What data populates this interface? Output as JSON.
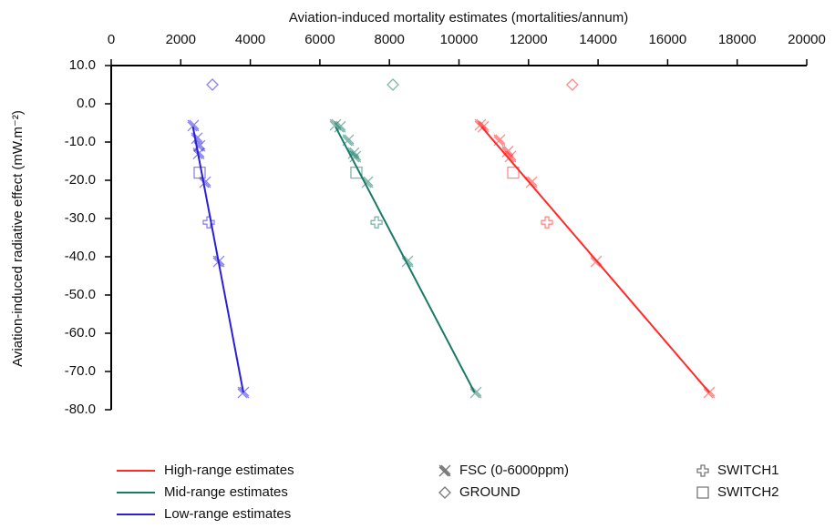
{
  "chart_data": {
    "type": "scatter-line",
    "x_label": "Aviation-induced mortality estimates (mortalities/annum)",
    "y_label": "Aviation-induced radiative effect (mW.m⁻²)",
    "xlim": [
      0,
      20000
    ],
    "xticks": [
      0,
      2000,
      4000,
      6000,
      8000,
      10000,
      12000,
      14000,
      16000,
      18000,
      20000
    ],
    "ylim": [
      -80,
      10
    ],
    "yticks": [
      {
        "value": 10,
        "label": "10.0"
      },
      {
        "value": 0,
        "label": "0.0"
      },
      {
        "value": -10,
        "label": "-10.0"
      },
      {
        "value": -20,
        "label": "-20.0"
      },
      {
        "value": -30,
        "label": "-30.0"
      },
      {
        "value": -40,
        "label": "-40.0"
      },
      {
        "value": -50,
        "label": "-50.0"
      },
      {
        "value": -60,
        "label": "-60.0"
      },
      {
        "value": -70,
        "label": "-70.0"
      },
      {
        "value": -80,
        "label": "-80.0"
      }
    ],
    "markers": [
      {
        "name": "FSC (0-6000ppm)",
        "shape": "x"
      },
      {
        "name": "GROUND",
        "shape": "diamond"
      },
      {
        "name": "SWITCH1",
        "shape": "plus"
      },
      {
        "name": "SWITCH2",
        "shape": "square"
      }
    ],
    "series": [
      {
        "name": "High-range estimates",
        "color": "#ff2a2a",
        "x": [
          10650,
          17200
        ],
        "y": [
          -6,
          -75.5
        ],
        "groups": [
          {
            "x": [
              10615,
              10700,
              11165,
              11400,
              11480,
              12085,
              13945,
              17195
            ],
            "y": [
              -5.5,
              -6,
              -9.5,
              -12.5,
              -13.8,
              -20.5,
              -41.2,
              -75.5
            ]
          },
          {
            "x": [
              13260
            ],
            "y": [
              5
            ]
          },
          {
            "x": [
              12530
            ],
            "y": [
              -31
            ]
          },
          {
            "x": [
              11560
            ],
            "y": [
              -18
            ]
          }
        ]
      },
      {
        "name": "Mid-range estimates",
        "color": "#1a7a66",
        "x": [
          6450,
          10450
        ],
        "y": [
          -6,
          -75.5
        ],
        "groups": [
          {
            "x": [
              6450,
              6580,
              6815,
              6970,
              7020,
              7365,
              8520,
              10485
            ],
            "y": [
              -5.5,
              -6,
              -9.5,
              -12.9,
              -13.8,
              -20.5,
              -41.2,
              -75.5
            ]
          },
          {
            "x": [
              8100
            ],
            "y": [
              5
            ]
          },
          {
            "x": [
              7630
            ],
            "y": [
              -31
            ]
          },
          {
            "x": [
              7050
            ],
            "y": [
              -18
            ]
          }
        ]
      },
      {
        "name": "Low-range estimates",
        "color": "#2a1fd6",
        "x": [
          2350,
          3800
        ],
        "y": [
          -6,
          -75.5
        ],
        "groups": [
          {
            "x": [
              2359,
              2464,
              2540,
              2515,
              2700,
              3093,
              3800
            ],
            "y": [
              -5.7,
              -9,
              -11,
              -13,
              -20.5,
              -41.2,
              -75.5
            ]
          },
          {
            "x": [
              2910
            ],
            "y": [
              5
            ]
          },
          {
            "x": [
              2805
            ],
            "y": [
              -31
            ]
          },
          {
            "x": [
              2543
            ],
            "y": [
              -18
            ]
          }
        ]
      }
    ]
  }
}
